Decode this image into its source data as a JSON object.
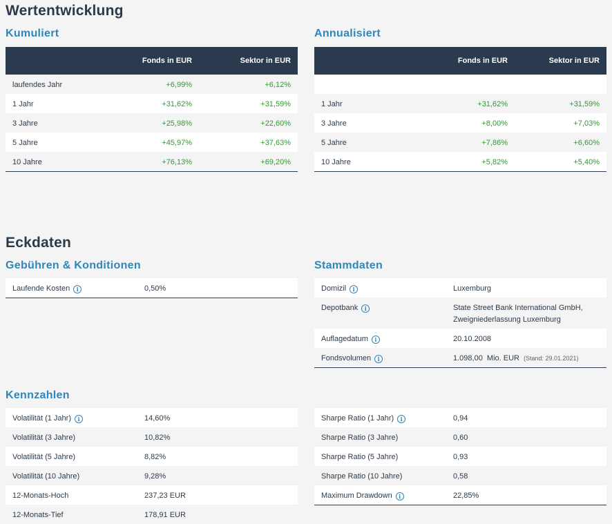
{
  "wertentwicklung": {
    "title": "Wertentwicklung",
    "kumuliert": {
      "title": "Kumuliert",
      "col_fonds": "Fonds in EUR",
      "col_sektor": "Sektor in EUR",
      "rows": [
        {
          "label": "laufendes Jahr",
          "fonds": "+6,99%",
          "sektor": "+6,12%"
        },
        {
          "label": "1 Jahr",
          "fonds": "+31,62%",
          "sektor": "+31,59%"
        },
        {
          "label": "3 Jahre",
          "fonds": "+25,98%",
          "sektor": "+22,60%"
        },
        {
          "label": "5 Jahre",
          "fonds": "+45,97%",
          "sektor": "+37,63%"
        },
        {
          "label": "10 Jahre",
          "fonds": "+76,13%",
          "sektor": "+69,20%"
        }
      ]
    },
    "annualisiert": {
      "title": "Annualisiert",
      "col_fonds": "Fonds in EUR",
      "col_sektor": "Sektor in EUR",
      "rows": [
        {
          "label": "",
          "fonds": "",
          "sektor": ""
        },
        {
          "label": "1 Jahr",
          "fonds": "+31,62%",
          "sektor": "+31,59%"
        },
        {
          "label": "3 Jahre",
          "fonds": "+8,00%",
          "sektor": "+7,03%"
        },
        {
          "label": "5 Jahre",
          "fonds": "+7,86%",
          "sektor": "+6,60%"
        },
        {
          "label": "10 Jahre",
          "fonds": "+5,82%",
          "sektor": "+5,40%"
        }
      ]
    }
  },
  "eckdaten": {
    "title": "Eckdaten",
    "gebuehren": {
      "title": "Gebühren & Konditionen",
      "rows": [
        {
          "label": "Laufende Kosten",
          "value": "0,50%"
        }
      ]
    },
    "stammdaten": {
      "title": "Stammdaten",
      "domizil_label": "Domizil",
      "domizil_value": "Luxemburg",
      "depotbank_label": "Depotbank",
      "depotbank_line1": "State Street Bank International GmbH,",
      "depotbank_line2": "Zweigniederlassung Luxemburg",
      "auflage_label": "Auflagedatum",
      "auflage_value": "20.10.2008",
      "volumen_label": "Fondsvolumen",
      "volumen_value": "1.098,00  Mio. EUR",
      "volumen_stand": "(Stand: 29.01.2021)"
    }
  },
  "kennzahlen": {
    "title": "Kennzahlen",
    "left": [
      {
        "label": "Volatilität (1 Jahr)",
        "value": "14,60%"
      },
      {
        "label": "Volatilität (3 Jahre)",
        "value": "10,82%"
      },
      {
        "label": "Volatilität (5 Jahre)",
        "value": "8,82%"
      },
      {
        "label": "Volatilität (10 Jahre)",
        "value": "9,28%"
      },
      {
        "label": "12-Monats-Hoch",
        "value": "237,23 EUR"
      },
      {
        "label": "12-Monats-Tief",
        "value": "178,91 EUR"
      }
    ],
    "right": [
      {
        "label": "Sharpe Ratio (1 Jahr)",
        "value": "0,94"
      },
      {
        "label": "Sharpe Ratio (3 Jahre)",
        "value": "0,60"
      },
      {
        "label": "Sharpe Ratio (5 Jahre)",
        "value": "0,93"
      },
      {
        "label": "Sharpe Ratio (10 Jahre)",
        "value": "0,58"
      },
      {
        "label": "Maximum Drawdown",
        "value": "22,85%"
      }
    ]
  },
  "info_icon": "i"
}
